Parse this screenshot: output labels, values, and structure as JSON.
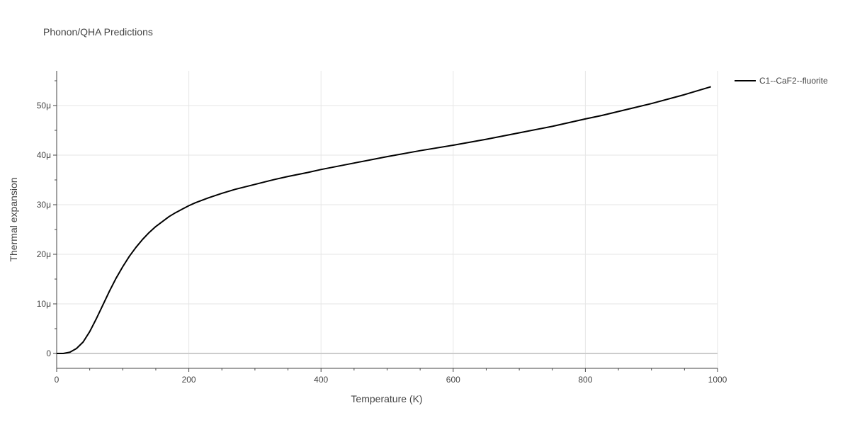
{
  "chart_data": {
    "type": "line",
    "title": "Phonon/QHA Predictions",
    "xlabel": "Temperature (K)",
    "ylabel": "Thermal expansion",
    "xlim": [
      0,
      1000
    ],
    "ylim": [
      -3e-06,
      5.7e-05
    ],
    "x_ticks": [
      0,
      200,
      400,
      600,
      800,
      1000
    ],
    "x_tick_labels": [
      "0",
      "200",
      "400",
      "600",
      "800",
      "1000"
    ],
    "y_ticks": [
      0,
      1e-05,
      2e-05,
      3e-05,
      4e-05,
      5e-05
    ],
    "y_tick_labels": [
      "0",
      "10μ",
      "20μ",
      "30μ",
      "40μ",
      "50μ"
    ],
    "grid": true,
    "legend_position": "top-right",
    "series": [
      {
        "name": "C1--CaF2--fluorite",
        "color": "#000000",
        "x": [
          0,
          10,
          20,
          30,
          40,
          50,
          60,
          70,
          80,
          90,
          100,
          110,
          120,
          130,
          140,
          150,
          160,
          170,
          180,
          190,
          200,
          210,
          230,
          250,
          270,
          300,
          330,
          350,
          380,
          400,
          450,
          500,
          550,
          600,
          650,
          700,
          750,
          800,
          825,
          850,
          900,
          950,
          990
        ],
        "y": [
          0,
          0,
          2.5e-07,
          1e-06,
          2.3e-06,
          4.4e-06,
          7e-06,
          9.8e-06,
          1.26e-05,
          1.52e-05,
          1.75e-05,
          1.96e-05,
          2.14e-05,
          2.3e-05,
          2.44e-05,
          2.56e-05,
          2.66e-05,
          2.76e-05,
          2.84e-05,
          2.91e-05,
          2.98e-05,
          3.04e-05,
          3.14e-05,
          3.23e-05,
          3.31e-05,
          3.41e-05,
          3.51e-05,
          3.57e-05,
          3.65e-05,
          3.71e-05,
          3.84e-05,
          3.97e-05,
          4.09e-05,
          4.2e-05,
          4.32e-05,
          4.45e-05,
          4.58e-05,
          4.73e-05,
          4.8e-05,
          4.88e-05,
          5.04e-05,
          5.22e-05,
          5.38e-05
        ]
      }
    ]
  }
}
